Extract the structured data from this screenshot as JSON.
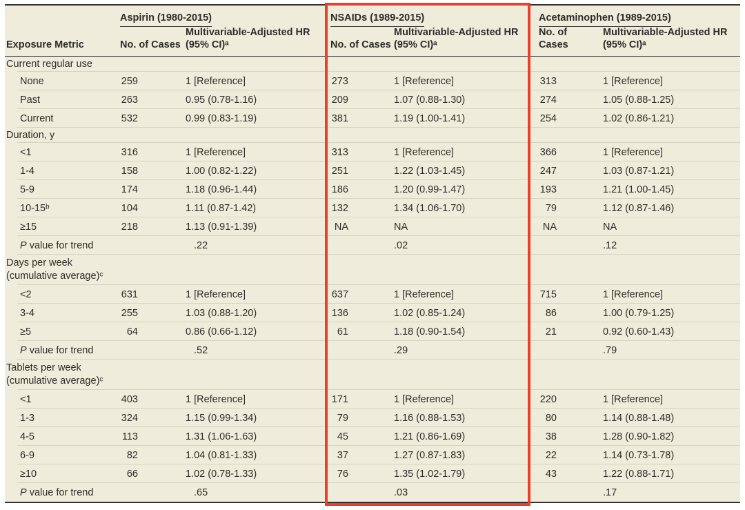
{
  "table": {
    "header": {
      "exposure_metric_label": "Exposure Metric",
      "cases_label": "No. of Cases",
      "hr_label_line1": "Multivariable-Adjusted HR",
      "hr_label_line2": "(95% CI)ᵃ",
      "groups": [
        {
          "title": "Aspirin (1980-2015)",
          "highlighted": false
        },
        {
          "title": "NSAIDs (1989-2015)",
          "highlighted": true
        },
        {
          "title": "Acetaminophen (1989-2015)",
          "highlighted": false
        }
      ]
    },
    "rows": [
      {
        "type": "section",
        "label": "Current regular use"
      },
      {
        "type": "data",
        "label": "None",
        "aspirin": {
          "cases": "259",
          "hr": "1 [Reference]"
        },
        "nsaids": {
          "cases": "273",
          "hr": "1 [Reference]"
        },
        "acetaminophen": {
          "cases": "313",
          "hr": "1 [Reference]"
        }
      },
      {
        "type": "data",
        "label": "Past",
        "aspirin": {
          "cases": "263",
          "hr": "0.95 (0.78-1.16)"
        },
        "nsaids": {
          "cases": "209",
          "hr": "1.07 (0.88-1.30)"
        },
        "acetaminophen": {
          "cases": "274",
          "hr": "1.05 (0.88-1.25)"
        }
      },
      {
        "type": "data",
        "label": "Current",
        "aspirin": {
          "cases": "532",
          "hr": "0.99 (0.83-1.19)"
        },
        "nsaids": {
          "cases": "381",
          "hr": "1.19 (1.00-1.41)"
        },
        "acetaminophen": {
          "cases": "254",
          "hr": "1.02 (0.86-1.21)"
        }
      },
      {
        "type": "section",
        "label": "Duration, y"
      },
      {
        "type": "data",
        "label": "<1",
        "aspirin": {
          "cases": "316",
          "hr": "1 [Reference]"
        },
        "nsaids": {
          "cases": "313",
          "hr": "1 [Reference]"
        },
        "acetaminophen": {
          "cases": "366",
          "hr": "1 [Reference]"
        }
      },
      {
        "type": "data",
        "label": "1-4",
        "aspirin": {
          "cases": "158",
          "hr": "1.00 (0.82-1.22)"
        },
        "nsaids": {
          "cases": "251",
          "hr": "1.22 (1.03-1.45)"
        },
        "acetaminophen": {
          "cases": "247",
          "hr": "1.03 (0.87-1.21)"
        }
      },
      {
        "type": "data",
        "label": "5-9",
        "aspirin": {
          "cases": "174",
          "hr": "1.18 (0.96-1.44)"
        },
        "nsaids": {
          "cases": "186",
          "hr": "1.20 (0.99-1.47)"
        },
        "acetaminophen": {
          "cases": "193",
          "hr": "1.21 (1.00-1.45)"
        }
      },
      {
        "type": "data",
        "label": "10-15ᵇ",
        "aspirin": {
          "cases": "104",
          "hr": "1.11 (0.87-1.42)"
        },
        "nsaids": {
          "cases": "132",
          "hr": "1.34 (1.06-1.70)"
        },
        "acetaminophen": {
          "cases": "79",
          "hr": "1.12 (0.87-1.46)"
        }
      },
      {
        "type": "data",
        "label": "≥15",
        "aspirin": {
          "cases": "218",
          "hr": "1.13 (0.91-1.39)"
        },
        "nsaids": {
          "cases": "NA",
          "hr": "NA"
        },
        "acetaminophen": {
          "cases": "NA",
          "hr": "NA"
        }
      },
      {
        "type": "pvalue",
        "label_italic": "P",
        "label_rest": " value for trend",
        "aspirin": ".22",
        "nsaids": ".02",
        "acetaminophen": ".12"
      },
      {
        "type": "section2",
        "label": "Days per week",
        "label2": "(cumulative average)ᶜ"
      },
      {
        "type": "data",
        "label": "<2",
        "aspirin": {
          "cases": "631",
          "hr": "1 [Reference]"
        },
        "nsaids": {
          "cases": "637",
          "hr": "1 [Reference]"
        },
        "acetaminophen": {
          "cases": "715",
          "hr": "1 [Reference]"
        }
      },
      {
        "type": "data",
        "label": "3-4",
        "aspirin": {
          "cases": "255",
          "hr": "1.03 (0.88-1.20)"
        },
        "nsaids": {
          "cases": "136",
          "hr": "1.02 (0.85-1.24)"
        },
        "acetaminophen": {
          "cases": "86",
          "hr": "1.00 (0.79-1.25)"
        }
      },
      {
        "type": "data",
        "label": "≥5",
        "aspirin": {
          "cases": "64",
          "hr": "0.86 (0.66-1.12)"
        },
        "nsaids": {
          "cases": "61",
          "hr": "1.18 (0.90-1.54)"
        },
        "acetaminophen": {
          "cases": "21",
          "hr": "0.92 (0.60-1.43)"
        }
      },
      {
        "type": "pvalue",
        "label_italic": "P",
        "label_rest": " value for trend",
        "aspirin": ".52",
        "nsaids": ".29",
        "acetaminophen": ".79"
      },
      {
        "type": "section2",
        "label": "Tablets per week",
        "label2": "(cumulative average)ᶜ"
      },
      {
        "type": "data",
        "label": "<1",
        "aspirin": {
          "cases": "403",
          "hr": "1 [Reference]"
        },
        "nsaids": {
          "cases": "171",
          "hr": "1 [Reference]"
        },
        "acetaminophen": {
          "cases": "220",
          "hr": "1 [Reference]"
        }
      },
      {
        "type": "data",
        "label": "1-3",
        "aspirin": {
          "cases": "324",
          "hr": "1.15 (0.99-1.34)"
        },
        "nsaids": {
          "cases": "79",
          "hr": "1.16 (0.88-1.53)"
        },
        "acetaminophen": {
          "cases": "80",
          "hr": "1.14 (0.88-1.48)"
        }
      },
      {
        "type": "data",
        "label": "4-5",
        "aspirin": {
          "cases": "113",
          "hr": "1.31 (1.06-1.63)"
        },
        "nsaids": {
          "cases": "45",
          "hr": "1.21 (0.86-1.69)"
        },
        "acetaminophen": {
          "cases": "38",
          "hr": "1.28 (0.90-1.82)"
        }
      },
      {
        "type": "data",
        "label": "6-9",
        "aspirin": {
          "cases": "82",
          "hr": "1.04 (0.81-1.33)"
        },
        "nsaids": {
          "cases": "37",
          "hr": "1.27 (0.87-1.83)"
        },
        "acetaminophen": {
          "cases": "22",
          "hr": "1.14 (0.73-1.78)"
        }
      },
      {
        "type": "data",
        "label": "≥10",
        "aspirin": {
          "cases": "66",
          "hr": "1.02 (0.78-1.33)"
        },
        "nsaids": {
          "cases": "76",
          "hr": "1.35 (1.02-1.79)"
        },
        "acetaminophen": {
          "cases": "43",
          "hr": "1.22 (0.88-1.71)"
        }
      },
      {
        "type": "pvalue",
        "label_italic": "P",
        "label_rest": " value for trend",
        "aspirin": ".65",
        "nsaids": ".03",
        "acetaminophen": ".17"
      }
    ],
    "colors": {
      "background": "#f0ecdc",
      "rule_dark": "#33322d",
      "rule_light": "#d7d3c2",
      "text": "#2d2c27",
      "highlight_box": "#e8402a"
    }
  }
}
